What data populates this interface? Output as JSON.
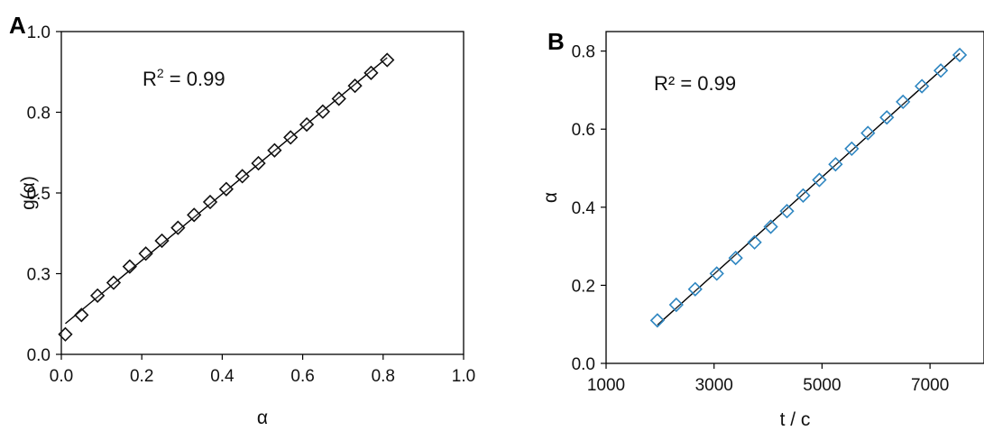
{
  "chart_data": [
    {
      "type": "scatter",
      "panel": "A",
      "annotation_prefix": "R",
      "annotation_sup": "2",
      "annotation_rest": " = 0.99",
      "xlabel": "α",
      "ylabel": "g(α)",
      "xlim": [
        0.0,
        1.0
      ],
      "ylim": [
        0.0,
        1.0
      ],
      "x_ticks": [
        0.0,
        0.2,
        0.4,
        0.6,
        0.8,
        1.0
      ],
      "x_tick_labels": [
        "0.0",
        "0.2",
        "0.4",
        "0.6",
        "0.8",
        "1.0"
      ],
      "y_ticks": [
        0.0,
        0.25,
        0.5,
        0.75,
        1.0
      ],
      "y_tick_labels": [
        "0.0",
        "0.3",
        "0.5",
        "0.8",
        "1.0"
      ],
      "grid": false,
      "marker": "diamond-open",
      "marker_color": "#111111",
      "fit_line": true,
      "fit_line_color": "#000000",
      "series": [
        {
          "x": [
            0.01,
            0.05,
            0.09,
            0.13,
            0.17,
            0.21,
            0.25,
            0.29,
            0.33,
            0.37,
            0.41,
            0.45,
            0.49,
            0.53,
            0.57,
            0.61,
            0.65,
            0.69,
            0.73,
            0.77,
            0.81
          ],
          "y": [
            0.062,
            0.122,
            0.182,
            0.222,
            0.272,
            0.312,
            0.352,
            0.392,
            0.432,
            0.472,
            0.512,
            0.552,
            0.592,
            0.632,
            0.672,
            0.712,
            0.752,
            0.792,
            0.832,
            0.872,
            0.912
          ]
        }
      ]
    },
    {
      "type": "scatter",
      "panel": "B",
      "annotation": "R² = 0.99",
      "xlabel": "t / c",
      "ylabel": "α",
      "xlim": [
        1000,
        8000
      ],
      "ylim": [
        0.0,
        0.85
      ],
      "x_ticks": [
        1000,
        3000,
        5000,
        7000
      ],
      "x_tick_labels": [
        "1000",
        "3000",
        "5000",
        "7000"
      ],
      "y_ticks": [
        0.0,
        0.2,
        0.4,
        0.6,
        0.8
      ],
      "y_tick_labels": [
        "0.0",
        "0.2",
        "0.4",
        "0.6",
        "0.8"
      ],
      "grid": false,
      "marker": "diamond-open",
      "marker_color": "#2e86c1",
      "fit_line": true,
      "fit_line_color": "#000000",
      "series": [
        {
          "x": [
            1950,
            2300,
            2650,
            3050,
            3400,
            3750,
            4050,
            4350,
            4650,
            4950,
            5250,
            5550,
            5850,
            6200,
            6500,
            6850,
            7200,
            7550
          ],
          "y": [
            0.11,
            0.15,
            0.19,
            0.23,
            0.27,
            0.31,
            0.35,
            0.39,
            0.43,
            0.47,
            0.51,
            0.55,
            0.59,
            0.63,
            0.67,
            0.71,
            0.75,
            0.79
          ]
        }
      ]
    }
  ]
}
